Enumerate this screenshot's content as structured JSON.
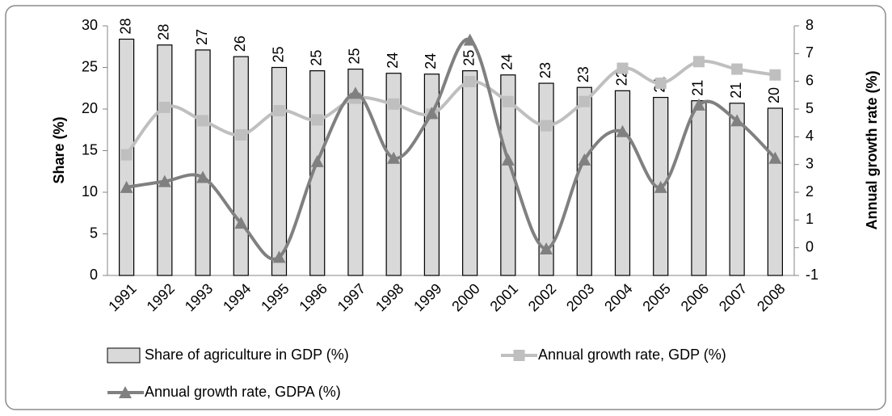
{
  "chart_data": {
    "type": "bar",
    "categories": [
      "1991",
      "1992",
      "1993",
      "1994",
      "1995",
      "1996",
      "1997",
      "1998",
      "1999",
      "2000",
      "2001",
      "2002",
      "2003",
      "2004",
      "2005",
      "2006",
      "2007",
      "2008"
    ],
    "y_label": "Share  (%)",
    "y2_label": "Annual growth rate (%)",
    "ylim": [
      0,
      30
    ],
    "yticks": [
      0,
      5,
      10,
      15,
      20,
      25,
      30
    ],
    "y2lim": [
      -1,
      8
    ],
    "y2ticks": [
      -1,
      0,
      1,
      2,
      3,
      4,
      5,
      6,
      7,
      8
    ],
    "series": [
      {
        "name": "Share of agriculture in GDP (%)",
        "type": "bar",
        "color": "#d9d9d9",
        "values": [
          28.4,
          27.7,
          27.1,
          26.3,
          25.0,
          24.6,
          24.8,
          24.3,
          24.2,
          24.6,
          24.1,
          23.1,
          22.6,
          22.2,
          21.4,
          21.0,
          20.7,
          20.1
        ],
        "value_labels": [
          "28",
          "28",
          "27",
          "26",
          "25",
          "25",
          "25",
          "24",
          "24",
          "25",
          "24",
          "23",
          "23",
          "22",
          "21",
          "21",
          "21",
          "20"
        ]
      },
      {
        "name": "Annual growth rate, GDP (%)",
        "type": "line",
        "axis": "y2",
        "marker": "square",
        "color": "#bfbfbf",
        "values": [
          3.35,
          5.06,
          4.58,
          4.07,
          4.94,
          4.61,
          5.39,
          5.18,
          4.82,
          5.99,
          5.27,
          4.4,
          5.27,
          6.47,
          5.93,
          6.71,
          6.44,
          6.23
        ]
      },
      {
        "name": "Annual growth rate, GDPA (%)",
        "type": "line",
        "axis": "y2",
        "marker": "triangle",
        "color": "#808080",
        "values": [
          2.18,
          2.39,
          2.54,
          0.89,
          -0.34,
          3.11,
          5.57,
          3.23,
          4.85,
          7.49,
          3.17,
          -0.04,
          3.17,
          4.19,
          2.18,
          5.15,
          4.58,
          3.23
        ]
      }
    ]
  }
}
